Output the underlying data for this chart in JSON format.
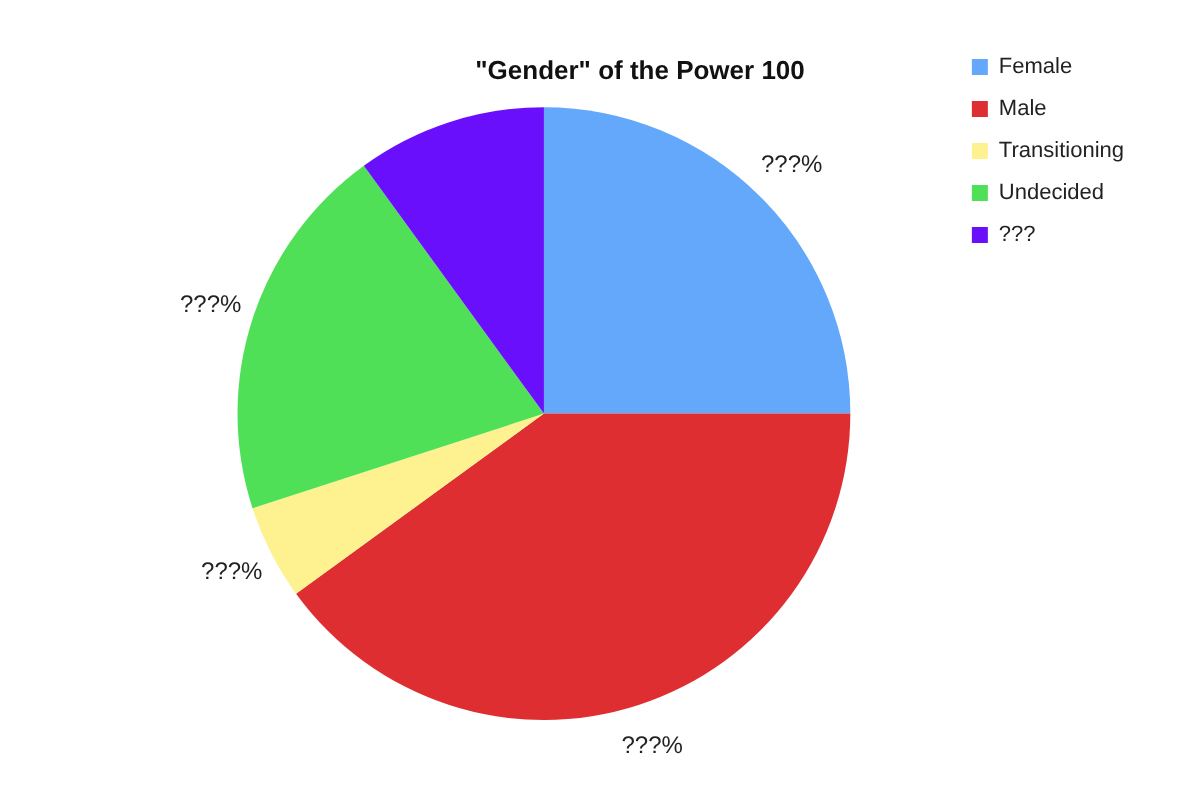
{
  "chart_data": {
    "type": "pie",
    "title": "\"Gender\" of the Power 100",
    "categories": [
      "Female",
      "Male",
      "Transitioning",
      "Undecided",
      "???"
    ],
    "values": [
      25,
      40,
      5,
      20,
      10
    ],
    "colors": [
      "#63a8fb",
      "#de2e32",
      "#fdf28f",
      "#4fe057",
      "#6a0ffb"
    ],
    "value_labels": [
      "???%",
      "???%",
      "???%",
      "???%",
      null
    ],
    "legend": "top right"
  }
}
